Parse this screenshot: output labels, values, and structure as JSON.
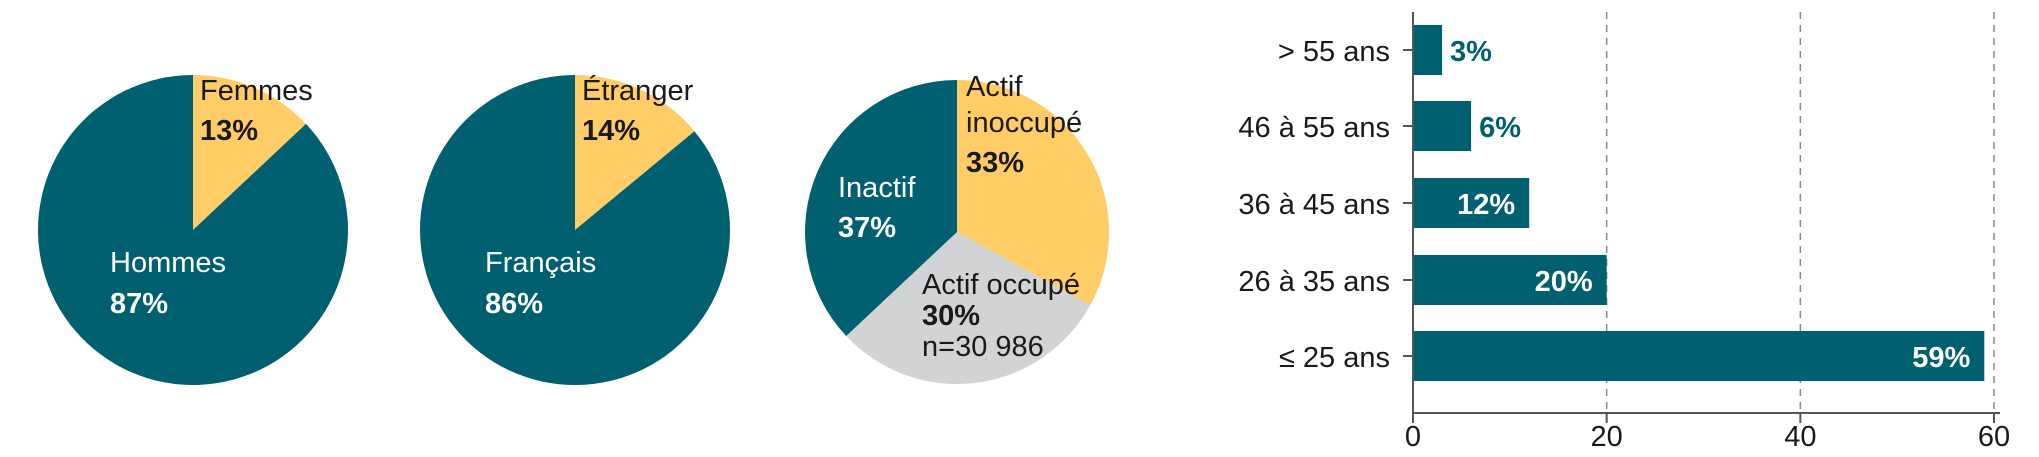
{
  "colors": {
    "teal": "#00606f",
    "yellow": "#ffcc66",
    "gray": "#d1d3d4",
    "text": "#1a1a1a",
    "white": "#ffffff",
    "axis": "#555555",
    "grid": "#8a8a8a"
  },
  "chart_data": [
    {
      "type": "pie",
      "slices": [
        {
          "label": "Femmes",
          "value": 13,
          "value_label": "13%",
          "color": "#ffcc66"
        },
        {
          "label": "Hommes",
          "value": 87,
          "value_label": "87%",
          "color": "#00606f"
        }
      ]
    },
    {
      "type": "pie",
      "slices": [
        {
          "label": "Étranger",
          "value": 14,
          "value_label": "14%",
          "color": "#ffcc66"
        },
        {
          "label": "Français",
          "value": 86,
          "value_label": "86%",
          "color": "#00606f"
        }
      ]
    },
    {
      "type": "pie",
      "note": "n=30 986",
      "slices": [
        {
          "label": "Actif inoccupé",
          "value": 33,
          "value_label": "33%",
          "color": "#ffcc66"
        },
        {
          "label": "Actif occupé",
          "value": 30,
          "value_label": "30%",
          "color": "#d1d3d4"
        },
        {
          "label": "Inactif",
          "value": 37,
          "value_label": "37%",
          "color": "#00606f"
        }
      ]
    },
    {
      "type": "bar",
      "orientation": "horizontal",
      "categories": [
        "> 55 ans",
        "46 à 55 ans",
        "36 à 45 ans",
        "26 à 35 ans",
        "≤ 25 ans"
      ],
      "values": [
        3,
        6,
        12,
        20,
        59
      ],
      "value_labels": [
        "3%",
        "6%",
        "12%",
        "20%",
        "59%"
      ],
      "xlim": [
        0,
        60
      ],
      "xticks": [
        "0",
        "20",
        "40",
        "60"
      ],
      "grid": "vertical dashed",
      "color": "#00606f"
    }
  ]
}
